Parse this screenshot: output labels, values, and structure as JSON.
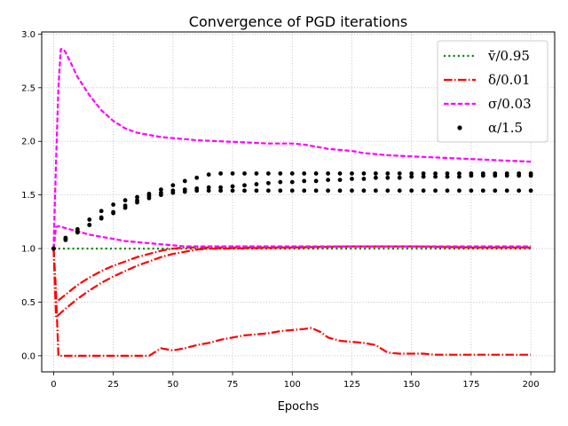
{
  "chart_data": {
    "type": "line",
    "title": "Convergence of PGD iterations",
    "xlabel": "Epochs",
    "ylabel": "",
    "xlim": [
      -5,
      210
    ],
    "ylim": [
      -0.15,
      3.02
    ],
    "xticks": [
      0,
      25,
      50,
      75,
      100,
      125,
      150,
      175,
      200
    ],
    "yticks": [
      0.0,
      0.5,
      1.0,
      1.5,
      2.0,
      2.5,
      3.0
    ],
    "xtick_labels": [
      "0",
      "25",
      "50",
      "75",
      "100",
      "125",
      "150",
      "175",
      "200"
    ],
    "ytick_labels": [
      "0.0",
      "0.5",
      "1.0",
      "1.5",
      "2.0",
      "2.5",
      "3.0"
    ],
    "grid": true,
    "legend_position": "top-right",
    "legend": [
      {
        "label": "v̄/0.95",
        "color": "#008000",
        "style": "dotted"
      },
      {
        "label": "δ/0.01",
        "color": "#ff0000",
        "style": "dashdot"
      },
      {
        "label": "σ/0.03",
        "color": "#ff00ff",
        "style": "dashed"
      },
      {
        "label": "α/1.5",
        "color": "#000000",
        "style": "points"
      }
    ],
    "series": [
      {
        "name": "v̄/0.95",
        "group": 0,
        "color": "#008000",
        "style": "dotted",
        "x": [
          0,
          200
        ],
        "y": [
          1.0,
          1.0
        ]
      },
      {
        "name": "δ/0.01 (a)",
        "group": 1,
        "color": "#ff0000",
        "style": "dashdot",
        "x": [
          0,
          1,
          5,
          10,
          15,
          20,
          25,
          30,
          35,
          40,
          45,
          50,
          55,
          60,
          70,
          80,
          100,
          125,
          150,
          175,
          200
        ],
        "y": [
          1.0,
          0.5,
          0.57,
          0.66,
          0.73,
          0.79,
          0.84,
          0.88,
          0.92,
          0.95,
          0.98,
          1.0,
          1.01,
          1.01,
          1.01,
          1.01,
          1.01,
          1.02,
          1.02,
          1.01,
          1.01
        ]
      },
      {
        "name": "δ/0.01 (b)",
        "group": 1,
        "color": "#ff0000",
        "style": "dashdot",
        "x": [
          0,
          1,
          5,
          10,
          15,
          20,
          25,
          30,
          35,
          40,
          45,
          50,
          55,
          60,
          65,
          70,
          100,
          125,
          150,
          175,
          200
        ],
        "y": [
          1.0,
          0.36,
          0.44,
          0.53,
          0.61,
          0.68,
          0.74,
          0.79,
          0.84,
          0.88,
          0.92,
          0.95,
          0.97,
          0.99,
          1.0,
          1.0,
          1.01,
          1.02,
          1.02,
          1.01,
          1.01
        ]
      },
      {
        "name": "δ/0.01 (c)",
        "group": 1,
        "color": "#ff0000",
        "style": "dashdot",
        "x": [
          0,
          1,
          2,
          5,
          10,
          20,
          30,
          35,
          38,
          40,
          45,
          50,
          55,
          60,
          65,
          70,
          75,
          80,
          85,
          90,
          95,
          100,
          105,
          108,
          112,
          115,
          120,
          125,
          130,
          135,
          140,
          145,
          150,
          155,
          160,
          165,
          170,
          175,
          180,
          185,
          190,
          195,
          200
        ],
        "y": [
          1.0,
          0.6,
          0.0,
          0.0,
          0.0,
          0.0,
          0.0,
          0.0,
          0.0,
          0.0,
          0.07,
          0.05,
          0.07,
          0.1,
          0.12,
          0.15,
          0.17,
          0.19,
          0.2,
          0.21,
          0.23,
          0.24,
          0.25,
          0.26,
          0.22,
          0.17,
          0.14,
          0.13,
          0.12,
          0.1,
          0.03,
          0.02,
          0.02,
          0.02,
          0.01,
          0.01,
          0.01,
          0.01,
          0.01,
          0.01,
          0.01,
          0.01,
          0.01
        ]
      },
      {
        "name": "σ/0.03 (a)",
        "group": 2,
        "color": "#ff00ff",
        "style": "dashed",
        "x": [
          0,
          1,
          2,
          3,
          4,
          5,
          7,
          10,
          15,
          20,
          25,
          30,
          35,
          40,
          45,
          50,
          60,
          70,
          80,
          90,
          100,
          105,
          110,
          115,
          120,
          125,
          130,
          140,
          150,
          160,
          170,
          180,
          190,
          200
        ],
        "y": [
          1.0,
          1.8,
          2.5,
          2.86,
          2.86,
          2.83,
          2.74,
          2.6,
          2.43,
          2.29,
          2.19,
          2.12,
          2.08,
          2.06,
          2.04,
          2.03,
          2.01,
          2.0,
          1.99,
          1.98,
          1.98,
          1.97,
          1.95,
          1.93,
          1.92,
          1.91,
          1.89,
          1.87,
          1.86,
          1.85,
          1.84,
          1.83,
          1.82,
          1.81
        ]
      },
      {
        "name": "σ/0.03 (b)",
        "group": 2,
        "color": "#ff00ff",
        "style": "dashed",
        "x": [
          0,
          1,
          2,
          5,
          10,
          15,
          20,
          25,
          30,
          35,
          40,
          45,
          50,
          55,
          60,
          70,
          80,
          100,
          150,
          200
        ],
        "y": [
          1.0,
          1.2,
          1.21,
          1.19,
          1.16,
          1.13,
          1.11,
          1.09,
          1.07,
          1.06,
          1.05,
          1.04,
          1.03,
          1.02,
          1.02,
          1.02,
          1.02,
          1.02,
          1.02,
          1.02
        ]
      },
      {
        "name": "α/1.5 (a)",
        "group": 3,
        "color": "#000000",
        "style": "points",
        "x": [
          0,
          5,
          10,
          15,
          20,
          25,
          30,
          35,
          40,
          45,
          50,
          55,
          60,
          65,
          70,
          75,
          80,
          85,
          90,
          95,
          100,
          105,
          110,
          115,
          120,
          125,
          130,
          135,
          140,
          145,
          150,
          155,
          160,
          165,
          170,
          175,
          180,
          185,
          190,
          195,
          200
        ],
        "y": [
          1.0,
          1.1,
          1.18,
          1.27,
          1.35,
          1.41,
          1.45,
          1.48,
          1.51,
          1.55,
          1.59,
          1.63,
          1.66,
          1.69,
          1.7,
          1.7,
          1.7,
          1.7,
          1.7,
          1.7,
          1.7,
          1.7,
          1.7,
          1.7,
          1.7,
          1.7,
          1.7,
          1.7,
          1.7,
          1.7,
          1.7,
          1.7,
          1.7,
          1.7,
          1.7,
          1.7,
          1.7,
          1.7,
          1.7,
          1.7,
          1.7
        ]
      },
      {
        "name": "α/1.5 (b)",
        "group": 3,
        "color": "#000000",
        "style": "points",
        "x": [
          0,
          5,
          10,
          15,
          20,
          25,
          30,
          35,
          40,
          45,
          50,
          55,
          60,
          65,
          70,
          75,
          80,
          85,
          90,
          95,
          100,
          105,
          110,
          115,
          120,
          125,
          130,
          135,
          140,
          145,
          150,
          155,
          160,
          165,
          170,
          175,
          180,
          185,
          190,
          195,
          200
        ],
        "y": [
          1.0,
          1.08,
          1.15,
          1.22,
          1.29,
          1.34,
          1.4,
          1.45,
          1.49,
          1.52,
          1.54,
          1.55,
          1.56,
          1.57,
          1.57,
          1.58,
          1.59,
          1.6,
          1.61,
          1.62,
          1.62,
          1.63,
          1.63,
          1.64,
          1.64,
          1.65,
          1.65,
          1.66,
          1.66,
          1.66,
          1.67,
          1.67,
          1.67,
          1.67,
          1.67,
          1.68,
          1.68,
          1.68,
          1.68,
          1.68,
          1.68
        ]
      },
      {
        "name": "α/1.5 (c)",
        "group": 3,
        "color": "#000000",
        "style": "points",
        "x": [
          0,
          5,
          10,
          15,
          20,
          25,
          30,
          35,
          40,
          45,
          50,
          55,
          60,
          65,
          70,
          75,
          80,
          85,
          90,
          95,
          100,
          105,
          110,
          115,
          120,
          125,
          130,
          135,
          140,
          145,
          150,
          155,
          160,
          165,
          170,
          175,
          180,
          185,
          190,
          195,
          200
        ],
        "y": [
          1.0,
          1.09,
          1.16,
          1.22,
          1.28,
          1.33,
          1.38,
          1.43,
          1.47,
          1.5,
          1.52,
          1.53,
          1.54,
          1.54,
          1.54,
          1.54,
          1.54,
          1.54,
          1.54,
          1.54,
          1.54,
          1.54,
          1.54,
          1.54,
          1.54,
          1.54,
          1.54,
          1.54,
          1.54,
          1.54,
          1.54,
          1.54,
          1.54,
          1.54,
          1.54,
          1.54,
          1.54,
          1.54,
          1.54,
          1.54,
          1.54
        ]
      }
    ]
  }
}
